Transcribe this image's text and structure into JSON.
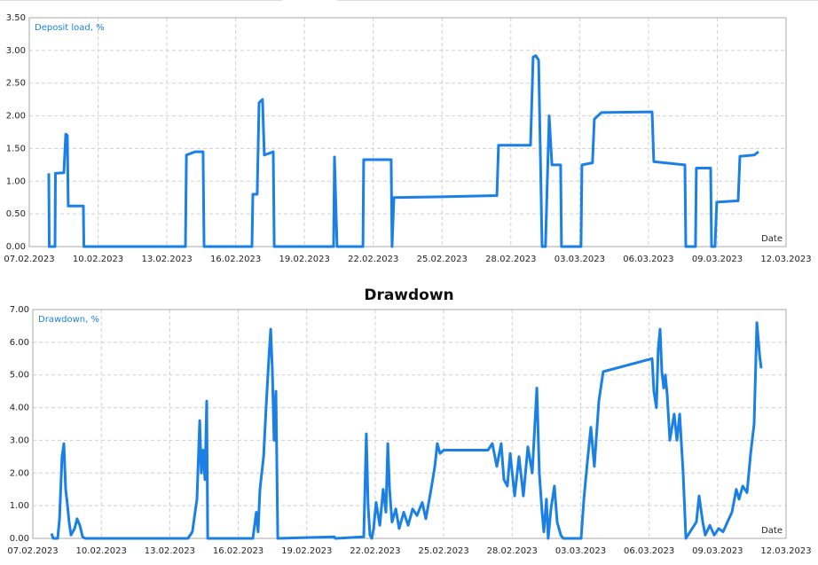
{
  "chart_data": [
    {
      "type": "line",
      "x_label": "Date",
      "x": [
        0.85,
        0.87,
        1.12,
        1.14,
        1.51,
        1.59,
        1.66,
        1.7,
        2.36,
        2.38,
        6.81,
        6.85,
        7.23,
        7.58,
        7.62,
        9.71,
        9.75,
        9.94,
        10.02,
        10.17,
        10.25,
        10.64,
        10.68,
        13.27,
        13.31,
        13.42,
        14.55,
        14.58,
        15.78,
        15.82,
        15.9,
        17.68,
        20.39,
        20.46,
        21.86,
        21.97,
        22.09,
        22.21,
        22.36,
        22.51,
        22.67,
        22.79,
        23.17,
        23.21,
        24.06,
        24.1,
        24.56,
        24.64,
        24.95,
        27.16,
        27.23,
        28.59,
        28.63,
        29.05,
        29.09,
        29.71,
        29.75,
        29.9,
        29.98,
        30.91,
        30.99,
        31.61,
        31.8
      ],
      "series": [
        {
          "name": "Deposit load, %",
          "color": "#1a80e6",
          "values": [
            1.12,
            0,
            0,
            1.12,
            1.13,
            1.72,
            1.7,
            0.62,
            0.62,
            0,
            0,
            1.4,
            1.45,
            1.45,
            0,
            0,
            0.8,
            0.8,
            2.2,
            2.25,
            1.4,
            1.45,
            0,
            0,
            1.37,
            0,
            0,
            1.33,
            1.33,
            0,
            0.75,
            0.76,
            0.78,
            1.55,
            1.55,
            2.9,
            2.92,
            2.85,
            0,
            0,
            2.0,
            1.25,
            1.25,
            0,
            0,
            1.25,
            1.28,
            1.95,
            2.05,
            2.06,
            1.3,
            1.25,
            0,
            0,
            1.2,
            1.2,
            0,
            0,
            0.68,
            0.7,
            1.38,
            1.4,
            1.45
          ]
        }
      ],
      "xlim": [
        0,
        33
      ],
      "xticks": [
        {
          "value": 0,
          "label": "07.02.2023"
        },
        {
          "value": 3,
          "label": "10.02.2023"
        },
        {
          "value": 6,
          "label": "13.02.2023"
        },
        {
          "value": 9,
          "label": "16.02.2023"
        },
        {
          "value": 12,
          "label": "19.02.2023"
        },
        {
          "value": 15,
          "label": "22.02.2023"
        },
        {
          "value": 18,
          "label": "25.02.2023"
        },
        {
          "value": 21,
          "label": "28.02.2023"
        },
        {
          "value": 24,
          "label": "03.03.2023"
        },
        {
          "value": 27,
          "label": "06.03.2023"
        },
        {
          "value": 30,
          "label": "09.03.2023"
        },
        {
          "value": 33,
          "label": "12.03.2023"
        }
      ],
      "ylim": [
        0,
        3.5
      ],
      "yticks": [
        {
          "value": 0,
          "label": "0.00"
        },
        {
          "value": 0.5,
          "label": "0.50"
        },
        {
          "value": 1,
          "label": "1.00"
        },
        {
          "value": 1.5,
          "label": "1.50"
        },
        {
          "value": 2,
          "label": "2.00"
        },
        {
          "value": 2.5,
          "label": "2.50"
        },
        {
          "value": 3,
          "label": "3.00"
        },
        {
          "value": 3.5,
          "label": "3.50"
        }
      ],
      "grid": true
    },
    {
      "type": "line",
      "title": "Drawdown",
      "x_label": "Date",
      "x": [
        0.82,
        0.89,
        1.09,
        1.17,
        1.28,
        1.36,
        1.44,
        1.52,
        1.59,
        1.67,
        1.83,
        1.94,
        2.06,
        2.18,
        2.29,
        6.8,
        6.99,
        7.19,
        7.31,
        7.38,
        7.46,
        7.54,
        7.62,
        7.66,
        9.64,
        9.79,
        9.87,
        9.95,
        10.11,
        10.22,
        10.34,
        10.42,
        10.49,
        10.57,
        10.65,
        10.73,
        13.21,
        13.25,
        14.5,
        14.61,
        14.69,
        14.77,
        14.85,
        14.93,
        15.04,
        15.2,
        15.35,
        15.47,
        15.55,
        15.63,
        15.74,
        15.9,
        16.05,
        16.25,
        16.44,
        16.64,
        16.83,
        17.06,
        17.22,
        17.45,
        17.61,
        17.72,
        17.84,
        18.0,
        19.94,
        20.13,
        20.33,
        20.52,
        20.64,
        20.79,
        20.91,
        21.11,
        21.3,
        21.49,
        21.69,
        21.88,
        22.08,
        22.19,
        22.31,
        22.39,
        22.5,
        22.58,
        22.7,
        22.85,
        22.97,
        23.13,
        23.24,
        24.02,
        24.14,
        24.29,
        24.45,
        24.6,
        24.8,
        24.99,
        27.13,
        27.21,
        27.32,
        27.4,
        27.48,
        27.56,
        27.64,
        27.71,
        27.79,
        27.91,
        28.1,
        28.22,
        28.34,
        28.49,
        28.61,
        29.07,
        29.19,
        29.35,
        29.46,
        29.66,
        29.85,
        30.05,
        30.24,
        30.43,
        30.63,
        30.82,
        30.94,
        31.1,
        31.29,
        31.45,
        31.6,
        31.72,
        31.84,
        31.91
      ],
      "series": [
        {
          "name": "Drawdown, %",
          "color": "#1a80e6",
          "values": [
            0.15,
            0,
            0,
            0.6,
            2.5,
            2.9,
            1.5,
            1.0,
            0.5,
            0.1,
            0.3,
            0.6,
            0.4,
            0.05,
            0,
            0,
            0.2,
            1.2,
            3.6,
            2.0,
            2.7,
            1.8,
            4.2,
            0,
            0,
            0.8,
            0.2,
            1.5,
            2.5,
            4.0,
            5.5,
            6.4,
            5.2,
            3.0,
            4.5,
            0,
            0.05,
            0,
            0.05,
            3.2,
            1.0,
            0.1,
            0,
            0.3,
            1.1,
            0.4,
            1.5,
            0.8,
            2.9,
            1.5,
            0.5,
            0.9,
            0.3,
            0.8,
            0.4,
            0.9,
            0.7,
            1.1,
            0.6,
            1.5,
            2.2,
            2.9,
            2.6,
            2.7,
            2.7,
            2.9,
            2.2,
            2.9,
            1.8,
            1.6,
            2.6,
            1.3,
            2.5,
            1.3,
            2.8,
            2.0,
            4.6,
            2.0,
            0.8,
            0.2,
            1.2,
            0,
            0.9,
            1.6,
            0.5,
            0.1,
            0,
            0,
            1.2,
            2.3,
            3.4,
            2.2,
            4.2,
            5.1,
            5.5,
            4.5,
            4.0,
            5.8,
            6.4,
            5.1,
            4.6,
            5.0,
            4.4,
            3.0,
            3.8,
            3.0,
            3.8,
            2.0,
            0,
            0.5,
            1.3,
            0.5,
            0.1,
            0.4,
            0.1,
            0.3,
            0.2,
            0.5,
            0.8,
            1.5,
            1.2,
            1.6,
            1.4,
            2.6,
            3.5,
            6.6,
            5.6,
            5.2
          ]
        }
      ],
      "xlim": [
        0,
        33
      ],
      "xticks": [
        {
          "value": 0,
          "label": "07.02.2023"
        },
        {
          "value": 3,
          "label": "10.02.2023"
        },
        {
          "value": 6,
          "label": "13.02.2023"
        },
        {
          "value": 9,
          "label": "16.02.2023"
        },
        {
          "value": 12,
          "label": "19.02.2023"
        },
        {
          "value": 15,
          "label": "22.02.2023"
        },
        {
          "value": 18,
          "label": "25.02.2023"
        },
        {
          "value": 21,
          "label": "28.02.2023"
        },
        {
          "value": 24,
          "label": "03.03.2023"
        },
        {
          "value": 27,
          "label": "06.03.2023"
        },
        {
          "value": 30,
          "label": "09.03.2023"
        },
        {
          "value": 33,
          "label": "12.03.2023"
        }
      ],
      "ylim": [
        0,
        7
      ],
      "yticks": [
        {
          "value": 0,
          "label": "0.00"
        },
        {
          "value": 1,
          "label": "1.00"
        },
        {
          "value": 2,
          "label": "2.00"
        },
        {
          "value": 3,
          "label": "3.00"
        },
        {
          "value": 4,
          "label": "4.00"
        },
        {
          "value": 5,
          "label": "5.00"
        },
        {
          "value": 6,
          "label": "6.00"
        },
        {
          "value": 7,
          "label": "7.00"
        }
      ],
      "grid": true
    }
  ]
}
